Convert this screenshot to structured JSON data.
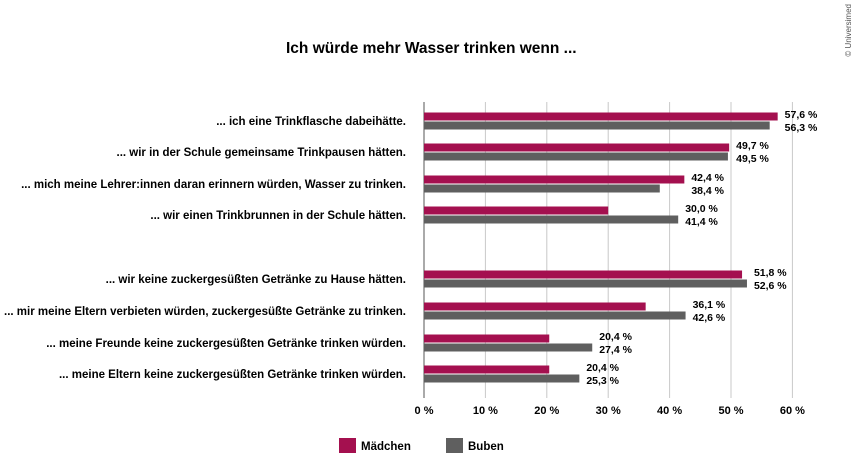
{
  "copyright": "© Universimed",
  "chart_data": {
    "type": "bar",
    "orientation": "horizontal",
    "title": "Ich würde mehr Wasser trinken wenn ...",
    "categories": [
      "... ich eine Trinkflasche dabeihätte.",
      "... wir in der Schule gemeinsame Trinkpausen hätten.",
      "... mich meine Lehrer:innen daran erinnern würden, Wasser zu trinken.",
      "... wir einen Trinkbrunnen in der Schule hätten.",
      "... wir keine zuckergesüßten Getränke zu Hause hätten.",
      "... mir meine Eltern verbieten würden, zuckergesüßte Getränke zu trinken.",
      "... meine Freunde keine zuckergesüßten Getränke trinken würden.",
      "... meine Eltern keine zuckergesüßten Getränke trinken würden."
    ],
    "groups": [
      [
        0,
        1,
        2,
        3
      ],
      [
        4,
        5,
        6,
        7
      ]
    ],
    "series": [
      {
        "name": "Mädchen",
        "color": "#A4104F",
        "values": [
          57.6,
          49.7,
          42.4,
          30.0,
          51.8,
          36.1,
          20.4,
          20.4
        ],
        "labels": [
          "57,6 %",
          "49,7 %",
          "42,4 %",
          "30,0 %",
          "51,8 %",
          "36,1 %",
          "20,4 %",
          "20,4 %"
        ]
      },
      {
        "name": "Buben",
        "color": "#5F5F5F",
        "values": [
          56.3,
          49.5,
          38.4,
          41.4,
          52.6,
          42.6,
          27.4,
          25.3
        ],
        "labels": [
          "56,3 %",
          "49,5 %",
          "38,4 %",
          "41,4 %",
          "52,6 %",
          "42,6 %",
          "27,4 %",
          "25,3 %"
        ]
      }
    ],
    "xlim": [
      0,
      60
    ],
    "xticks": [
      0,
      10,
      20,
      30,
      40,
      50,
      60
    ],
    "xtick_labels": [
      "0 %",
      "10 %",
      "20 %",
      "30 %",
      "40 %",
      "50 %",
      "60 %"
    ],
    "grid": true,
    "legend_position": "bottom"
  }
}
